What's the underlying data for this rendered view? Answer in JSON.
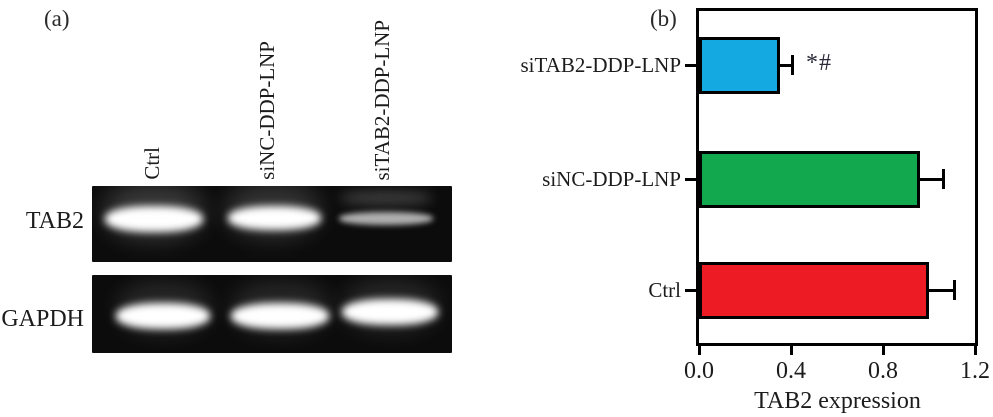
{
  "panel_a": {
    "label": "(a)",
    "lane_labels": [
      "Ctrl",
      "siNC-DDP-LNP",
      "siTAB2-DDP-LNP"
    ],
    "row_labels": [
      "TAB2",
      "GAPDH"
    ],
    "bands": {
      "TAB2": [
        "strong",
        "strong",
        "weak"
      ],
      "GAPDH": [
        "strong",
        "strong",
        "strong"
      ]
    }
  },
  "panel_b": {
    "label": "(b)"
  },
  "chart_data": {
    "type": "bar",
    "orientation": "horizontal",
    "title": "",
    "xlabel": "TAB2 expression",
    "ylabel": "",
    "categories": [
      "siTAB2-DDP-LNP",
      "siNC-DDP-LNP",
      "Ctrl"
    ],
    "values": [
      0.35,
      0.96,
      1.0
    ],
    "errors": [
      0.05,
      0.1,
      0.11
    ],
    "annotations": [
      "*#",
      "",
      ""
    ],
    "bar_colors": [
      "#14A9E1",
      "#11A84E",
      "#ED1C24"
    ],
    "xlim": [
      0.0,
      1.2
    ],
    "xticks": [
      0.0,
      0.4,
      0.8,
      1.2
    ],
    "xtick_labels": [
      "0.0",
      "0.4",
      "0.8",
      "1.2"
    ],
    "grid": false,
    "legend": null,
    "frame": "full-box"
  }
}
